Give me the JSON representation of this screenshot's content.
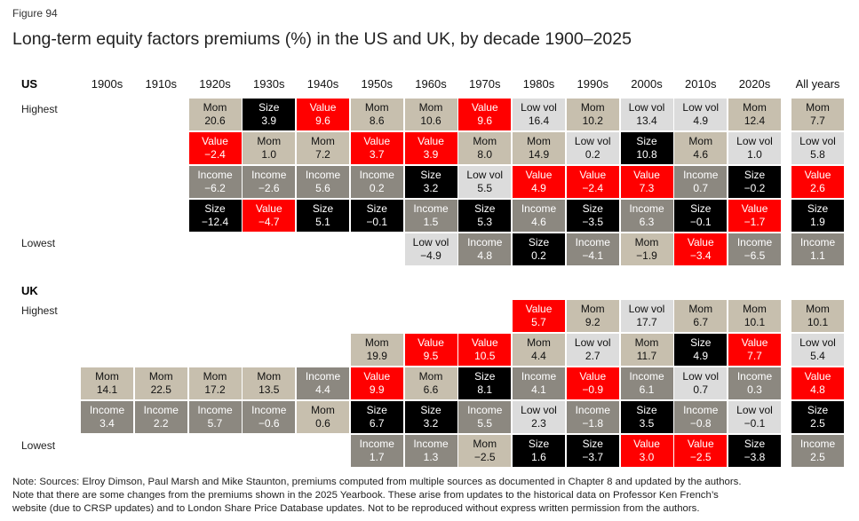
{
  "figure_label": "Figure 94",
  "title": "Long-term equity factors premiums (%) in the US and UK, by decade 1900–2025",
  "row_labels": {
    "highest": "Highest",
    "lowest": "Lowest"
  },
  "note_lines": [
    "Note: Sources: Elroy Dimson, Paul Marsh and Mike Staunton, premiums computed from multiple sources as documented in Chapter 8 and updated by the authors.",
    "Note that there are some changes from the premiums shown in the 2025 Yearbook. These arise from updates to the historical data on Professor Ken French’s",
    "website (due to CRSP updates) and to London Share Price Database updates. Not to be reproduced without express written permission from the authors."
  ],
  "colors": {
    "Mom": "#c7bfae",
    "Size": "#000000",
    "Value": "#ff0000",
    "Low vol": "#dcdcdc",
    "Income": "#8c8880"
  },
  "chart_data": {
    "type": "table",
    "title": "Long-term equity factors premiums (%) in the US and UK, by decade 1900–2025",
    "columns": [
      "1900s",
      "1910s",
      "1920s",
      "1930s",
      "1940s",
      "1950s",
      "1960s",
      "1970s",
      "1980s",
      "1990s",
      "2000s",
      "2010s",
      "2020s",
      "All years"
    ],
    "panels": [
      {
        "name": "US",
        "columns": [
          [],
          [],
          [
            [
              "Mom",
              "20.6"
            ],
            [
              "Value",
              "−2.4"
            ],
            [
              "Income",
              "−6.2"
            ],
            [
              "Size",
              "−12.4"
            ]
          ],
          [
            [
              "Size",
              "3.9"
            ],
            [
              "Mom",
              "1.0"
            ],
            [
              "Income",
              "−2.6"
            ],
            [
              "Value",
              "−4.7"
            ]
          ],
          [
            [
              "Value",
              "9.6"
            ],
            [
              "Mom",
              "7.2"
            ],
            [
              "Income",
              "5.6"
            ],
            [
              "Size",
              "5.1"
            ]
          ],
          [
            [
              "Mom",
              "8.6"
            ],
            [
              "Value",
              "3.7"
            ],
            [
              "Income",
              "0.2"
            ],
            [
              "Size",
              "−0.1"
            ]
          ],
          [
            [
              "Mom",
              "10.6"
            ],
            [
              "Value",
              "3.9"
            ],
            [
              "Size",
              "3.2"
            ],
            [
              "Income",
              "1.5"
            ],
            [
              "Low vol",
              "−4.9"
            ]
          ],
          [
            [
              "Value",
              "9.6"
            ],
            [
              "Mom",
              "8.0"
            ],
            [
              "Low vol",
              "5.5"
            ],
            [
              "Size",
              "5.3"
            ],
            [
              "Income",
              "4.8"
            ]
          ],
          [
            [
              "Low vol",
              "16.4"
            ],
            [
              "Mom",
              "14.9"
            ],
            [
              "Value",
              "4.9"
            ],
            [
              "Income",
              "4.6"
            ],
            [
              "Size",
              "0.2"
            ]
          ],
          [
            [
              "Mom",
              "10.2"
            ],
            [
              "Low vol",
              "0.2"
            ],
            [
              "Value",
              "−2.4"
            ],
            [
              "Size",
              "−3.5"
            ],
            [
              "Income",
              "−4.1"
            ]
          ],
          [
            [
              "Low vol",
              "13.4"
            ],
            [
              "Size",
              "10.8"
            ],
            [
              "Value",
              "7.3"
            ],
            [
              "Income",
              "6.3"
            ],
            [
              "Mom",
              "−1.9"
            ]
          ],
          [
            [
              "Low vol",
              "4.9"
            ],
            [
              "Mom",
              "4.6"
            ],
            [
              "Income",
              "0.7"
            ],
            [
              "Size",
              "−0.1"
            ],
            [
              "Value",
              "−3.4"
            ]
          ],
          [
            [
              "Mom",
              "12.4"
            ],
            [
              "Low vol",
              "1.0"
            ],
            [
              "Size",
              "−0.2"
            ],
            [
              "Value",
              "−1.7"
            ],
            [
              "Income",
              "−6.5"
            ]
          ],
          [
            [
              "Mom",
              "7.7"
            ],
            [
              "Low vol",
              "5.8"
            ],
            [
              "Value",
              "2.6"
            ],
            [
              "Size",
              "1.9"
            ],
            [
              "Income",
              "1.1"
            ]
          ]
        ]
      },
      {
        "name": "UK",
        "columns": [
          [
            [
              "Mom",
              "14.1"
            ],
            [
              "Income",
              "3.4"
            ]
          ],
          [
            [
              "Mom",
              "22.5"
            ],
            [
              "Income",
              "2.2"
            ]
          ],
          [
            [
              "Mom",
              "17.2"
            ],
            [
              "Income",
              "5.7"
            ]
          ],
          [
            [
              "Mom",
              "13.5"
            ],
            [
              "Income",
              "−0.6"
            ]
          ],
          [
            [
              "Income",
              "4.4"
            ],
            [
              "Mom",
              "0.6"
            ]
          ],
          [
            [
              "Mom",
              "19.9"
            ],
            [
              "Value",
              "9.9"
            ],
            [
              "Size",
              "6.7"
            ],
            [
              "Income",
              "1.7"
            ]
          ],
          [
            [
              "Value",
              "9.5"
            ],
            [
              "Mom",
              "6.6"
            ],
            [
              "Size",
              "3.2"
            ],
            [
              "Income",
              "1.3"
            ]
          ],
          [
            [
              "Value",
              "10.5"
            ],
            [
              "Size",
              "8.1"
            ],
            [
              "Income",
              "5.5"
            ],
            [
              "Mom",
              "−2.5"
            ]
          ],
          [
            [
              "Value",
              "5.7"
            ],
            [
              "Mom",
              "4.4"
            ],
            [
              "Income",
              "4.1"
            ],
            [
              "Low vol",
              "2.3"
            ],
            [
              "Size",
              "1.6"
            ]
          ],
          [
            [
              "Mom",
              "9.2"
            ],
            [
              "Low vol",
              "2.7"
            ],
            [
              "Value",
              "−0.9"
            ],
            [
              "Income",
              "−1.8"
            ],
            [
              "Size",
              "−3.7"
            ]
          ],
          [
            [
              "Low vol",
              "17.7"
            ],
            [
              "Mom",
              "11.7"
            ],
            [
              "Income",
              "6.1"
            ],
            [
              "Size",
              "3.5"
            ],
            [
              "Value",
              "3.0"
            ]
          ],
          [
            [
              "Mom",
              "6.7"
            ],
            [
              "Size",
              "4.9"
            ],
            [
              "Low vol",
              "0.7"
            ],
            [
              "Income",
              "−0.8"
            ],
            [
              "Value",
              "−2.5"
            ]
          ],
          [
            [
              "Mom",
              "10.1"
            ],
            [
              "Value",
              "7.7"
            ],
            [
              "Income",
              "0.3"
            ],
            [
              "Low vol",
              "−0.1"
            ],
            [
              "Size",
              "−3.8"
            ]
          ],
          [
            [
              "Mom",
              "10.1"
            ],
            [
              "Low vol",
              "5.4"
            ],
            [
              "Value",
              "4.8"
            ],
            [
              "Size",
              "2.5"
            ],
            [
              "Income",
              "2.5"
            ]
          ]
        ]
      }
    ]
  }
}
